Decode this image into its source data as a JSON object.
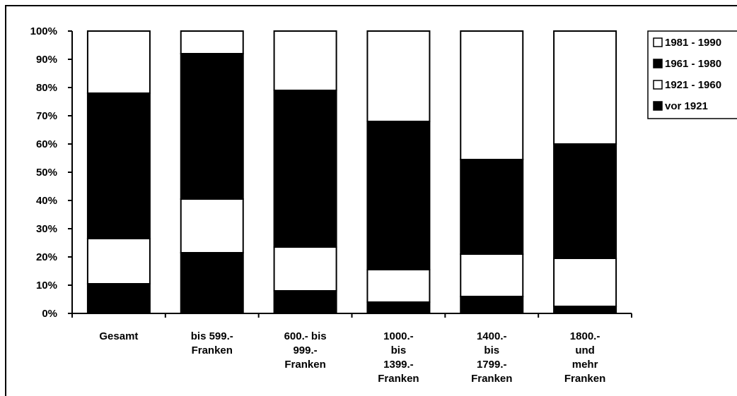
{
  "chart_data": {
    "type": "bar",
    "stacked": true,
    "percent": true,
    "title": "",
    "xlabel": "",
    "ylabel": "",
    "ylim": [
      0,
      100
    ],
    "yticks": [
      "0%",
      "10%",
      "20%",
      "30%",
      "40%",
      "50%",
      "60%",
      "70%",
      "80%",
      "90%",
      "100%"
    ],
    "categories": [
      [
        "Gesamt"
      ],
      [
        "bis 599.-",
        "Franken"
      ],
      [
        "600.- bis",
        "999.-",
        "Franken"
      ],
      [
        "1000.-",
        "bis",
        "1399.-",
        "Franken"
      ],
      [
        "1400.-",
        "bis",
        "1799.-",
        "Franken"
      ],
      [
        "1800.-",
        "und",
        "mehr",
        "Franken"
      ]
    ],
    "series": [
      {
        "name": "vor 1921",
        "color": "#000000",
        "values": [
          10.5,
          21.5,
          8,
          4,
          6,
          2.5
        ]
      },
      {
        "name": "1921 - 1960",
        "color": "#ffffff",
        "values": [
          16,
          19,
          15.5,
          11.5,
          15,
          17
        ]
      },
      {
        "name": "1961 - 1980",
        "color": "#000000",
        "values": [
          51.5,
          51.5,
          55.5,
          52.5,
          33.5,
          40.5
        ]
      },
      {
        "name": "1981 - 1990",
        "color": "#ffffff",
        "values": [
          22,
          8,
          21,
          32,
          45.5,
          40
        ]
      }
    ],
    "legend": {
      "position": "top-right",
      "order": [
        "1981 - 1990",
        "1961 - 1980",
        "1921 - 1960",
        "vor 1921"
      ]
    },
    "grid": false
  }
}
